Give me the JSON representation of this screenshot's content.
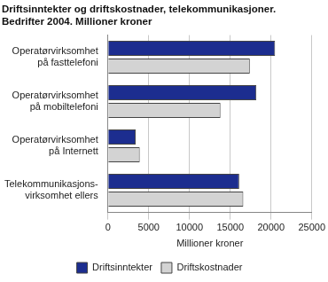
{
  "chart_data": {
    "type": "bar",
    "orientation": "horizontal",
    "title": [
      "Driftsinntekter og driftskostnader, telekommunikasjoner.",
      "Bedrifter 2004. Millioner kroner"
    ],
    "categories": [
      [
        "Operatørvirksomhet",
        "på fasttelefoni"
      ],
      [
        "Operatørvirksomhet",
        "på mobiltelefoni"
      ],
      [
        "Operatørvirksomhet",
        "på Internett"
      ],
      [
        "Telekommunikasjons-",
        "virksomhet ellers"
      ]
    ],
    "series": [
      {
        "name": "Driftsinntekter",
        "color": "#1c2d8f",
        "values": [
          20500,
          18200,
          3400,
          16100
        ]
      },
      {
        "name": "Driftskostnader",
        "color": "#d3d3d3",
        "values": [
          17400,
          13800,
          3900,
          16600
        ]
      }
    ],
    "x_label": "Millioner kroner",
    "xlim": [
      0,
      25000
    ],
    "xticks": [
      0,
      5000,
      10000,
      15000,
      20000,
      25000
    ],
    "grid": true,
    "legend": "bottom"
  }
}
